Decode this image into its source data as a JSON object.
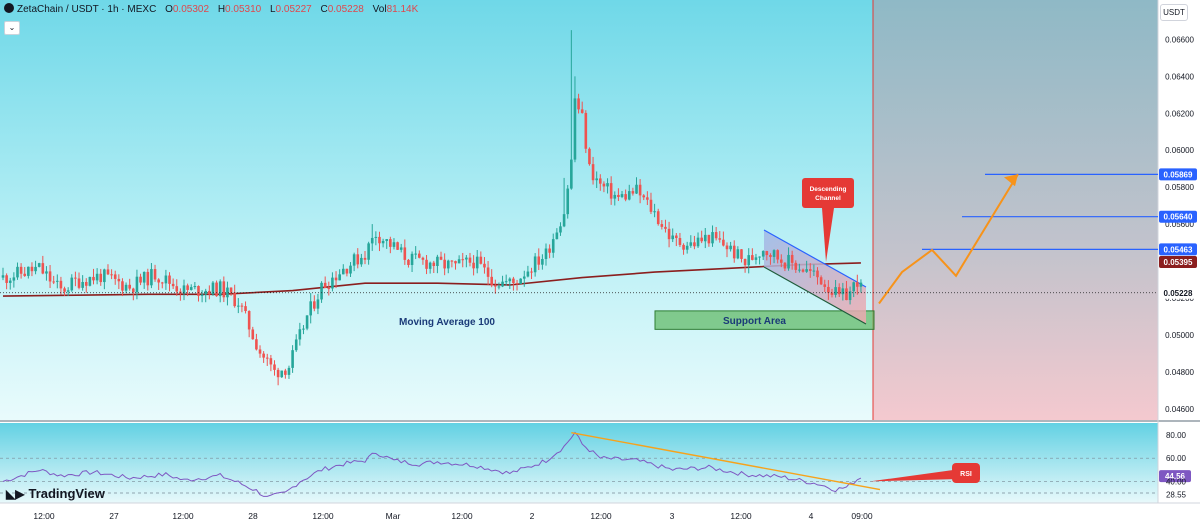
{
  "header": {
    "symbol": "ZetaChain / USDT · 1h · MEXC",
    "open_label": "O",
    "open": "0.05302",
    "high_label": "H",
    "high": "0.05310",
    "low_label": "L",
    "low": "0.05227",
    "close_label": "C",
    "close": "0.05228",
    "vol_label": "Vol",
    "vol": "81.14K"
  },
  "currency_label": "USDT",
  "brand": "TradingView",
  "colors": {
    "bull": "#26a69a",
    "bear": "#ef5350",
    "ma": "#8b1e1e",
    "forecast": "#f7931a",
    "target_line": "#2962ff",
    "support": "#4caf50",
    "channel_line": "#2962ff",
    "rsi": "#7e57c2",
    "rsi_trend": "#f7a21b",
    "callout": "#e53935",
    "bg_cyan": "#8ee4f0"
  },
  "chart_data": {
    "type": "candlestick",
    "xlabels": [
      "12:00",
      "27",
      "12:00",
      "28",
      "12:00",
      "Mar",
      "12:00",
      "2",
      "12:00",
      "3",
      "12:00",
      "4",
      "09:00"
    ],
    "y_ticks": [
      "0.06600",
      "0.06400",
      "0.06200",
      "0.06000",
      "0.05800",
      "0.05600",
      "0.05400",
      "0.05200",
      "0.05000",
      "0.04800",
      "0.04600"
    ],
    "ylim": [
      0.0455,
      0.0677
    ],
    "anchors": [
      [
        0,
        0.0531
      ],
      [
        10,
        0.0536
      ],
      [
        16,
        0.0524
      ],
      [
        20,
        0.0529
      ],
      [
        27,
        0.0532
      ],
      [
        35,
        0.0526
      ],
      [
        42,
        0.0533
      ],
      [
        50,
        0.0524
      ],
      [
        60,
        0.0525
      ],
      [
        65,
        0.0518
      ],
      [
        71,
        0.0491
      ],
      [
        75,
        0.048
      ],
      [
        79,
        0.0483
      ],
      [
        84,
        0.051
      ],
      [
        88,
        0.0526
      ],
      [
        94,
        0.0536
      ],
      [
        100,
        0.0544
      ],
      [
        103,
        0.0555
      ],
      [
        107,
        0.0549
      ],
      [
        112,
        0.0541
      ],
      [
        118,
        0.0539
      ],
      [
        125,
        0.0537
      ],
      [
        130,
        0.054
      ],
      [
        136,
        0.0529
      ],
      [
        141,
        0.0528
      ],
      [
        144,
        0.0534
      ],
      [
        150,
        0.0544
      ],
      [
        155,
        0.0567
      ],
      [
        157,
        0.0594
      ],
      [
        158,
        0.0628
      ],
      [
        160,
        0.0617
      ],
      [
        162,
        0.059
      ],
      [
        165,
        0.0581
      ],
      [
        170,
        0.0574
      ],
      [
        175,
        0.0578
      ],
      [
        180,
        0.0566
      ],
      [
        185,
        0.0551
      ],
      [
        190,
        0.0549
      ],
      [
        195,
        0.0553
      ],
      [
        200,
        0.0548
      ],
      [
        205,
        0.0539
      ],
      [
        210,
        0.0547
      ],
      [
        215,
        0.0541
      ],
      [
        220,
        0.0537
      ],
      [
        226,
        0.053
      ],
      [
        231,
        0.052
      ],
      [
        234,
        0.0523
      ],
      [
        236,
        0.053
      ],
      [
        237,
        0.0525
      ]
    ],
    "moving_average": {
      "label": "Moving Average 100",
      "period": 100,
      "points": [
        [
          0,
          0.0521
        ],
        [
          40,
          0.0522
        ],
        [
          60,
          0.0522
        ],
        [
          80,
          0.0524
        ],
        [
          100,
          0.0528
        ],
        [
          120,
          0.0528
        ],
        [
          140,
          0.0527
        ],
        [
          160,
          0.0531
        ],
        [
          180,
          0.0534
        ],
        [
          200,
          0.0536
        ],
        [
          220,
          0.0538
        ],
        [
          237,
          0.0539
        ]
      ]
    },
    "price_labels": {
      "targets": [
        "0.05869",
        "0.05640",
        "0.05463"
      ],
      "ma_value": "0.05395",
      "last_price": "0.05228"
    },
    "targets": [
      0.05869,
      0.0564,
      0.05463
    ],
    "support_area": {
      "label": "Support Area",
      "low": 0.0503,
      "high": 0.0513
    },
    "descending_channel": {
      "label_line1": "Descending",
      "label_line2": "Channel"
    },
    "forecast_path": [
      0.0517,
      0.0534,
      0.0546,
      0.0532,
      0.0587
    ],
    "rsi": {
      "label": "RSI",
      "levels": [
        "80.00",
        "60.00",
        "44.56",
        "40.00",
        "28.55"
      ],
      "current": "44.56",
      "ylim": [
        24,
        86
      ],
      "anchors": [
        [
          0,
          40
        ],
        [
          10,
          50
        ],
        [
          16,
          45
        ],
        [
          25,
          48
        ],
        [
          35,
          43
        ],
        [
          45,
          46
        ],
        [
          50,
          41
        ],
        [
          60,
          45
        ],
        [
          65,
          39
        ],
        [
          70,
          32
        ],
        [
          73,
          26
        ],
        [
          78,
          30
        ],
        [
          82,
          40
        ],
        [
          88,
          50
        ],
        [
          94,
          55
        ],
        [
          100,
          58
        ],
        [
          103,
          65
        ],
        [
          108,
          58
        ],
        [
          115,
          55
        ],
        [
          120,
          57
        ],
        [
          130,
          54
        ],
        [
          140,
          47
        ],
        [
          145,
          52
        ],
        [
          150,
          58
        ],
        [
          155,
          70
        ],
        [
          158,
          82
        ],
        [
          160,
          72
        ],
        [
          165,
          60
        ],
        [
          175,
          58
        ],
        [
          185,
          50
        ],
        [
          195,
          52
        ],
        [
          205,
          46
        ],
        [
          215,
          44
        ],
        [
          225,
          38
        ],
        [
          230,
          33
        ],
        [
          233,
          35
        ],
        [
          237,
          44
        ]
      ]
    }
  }
}
